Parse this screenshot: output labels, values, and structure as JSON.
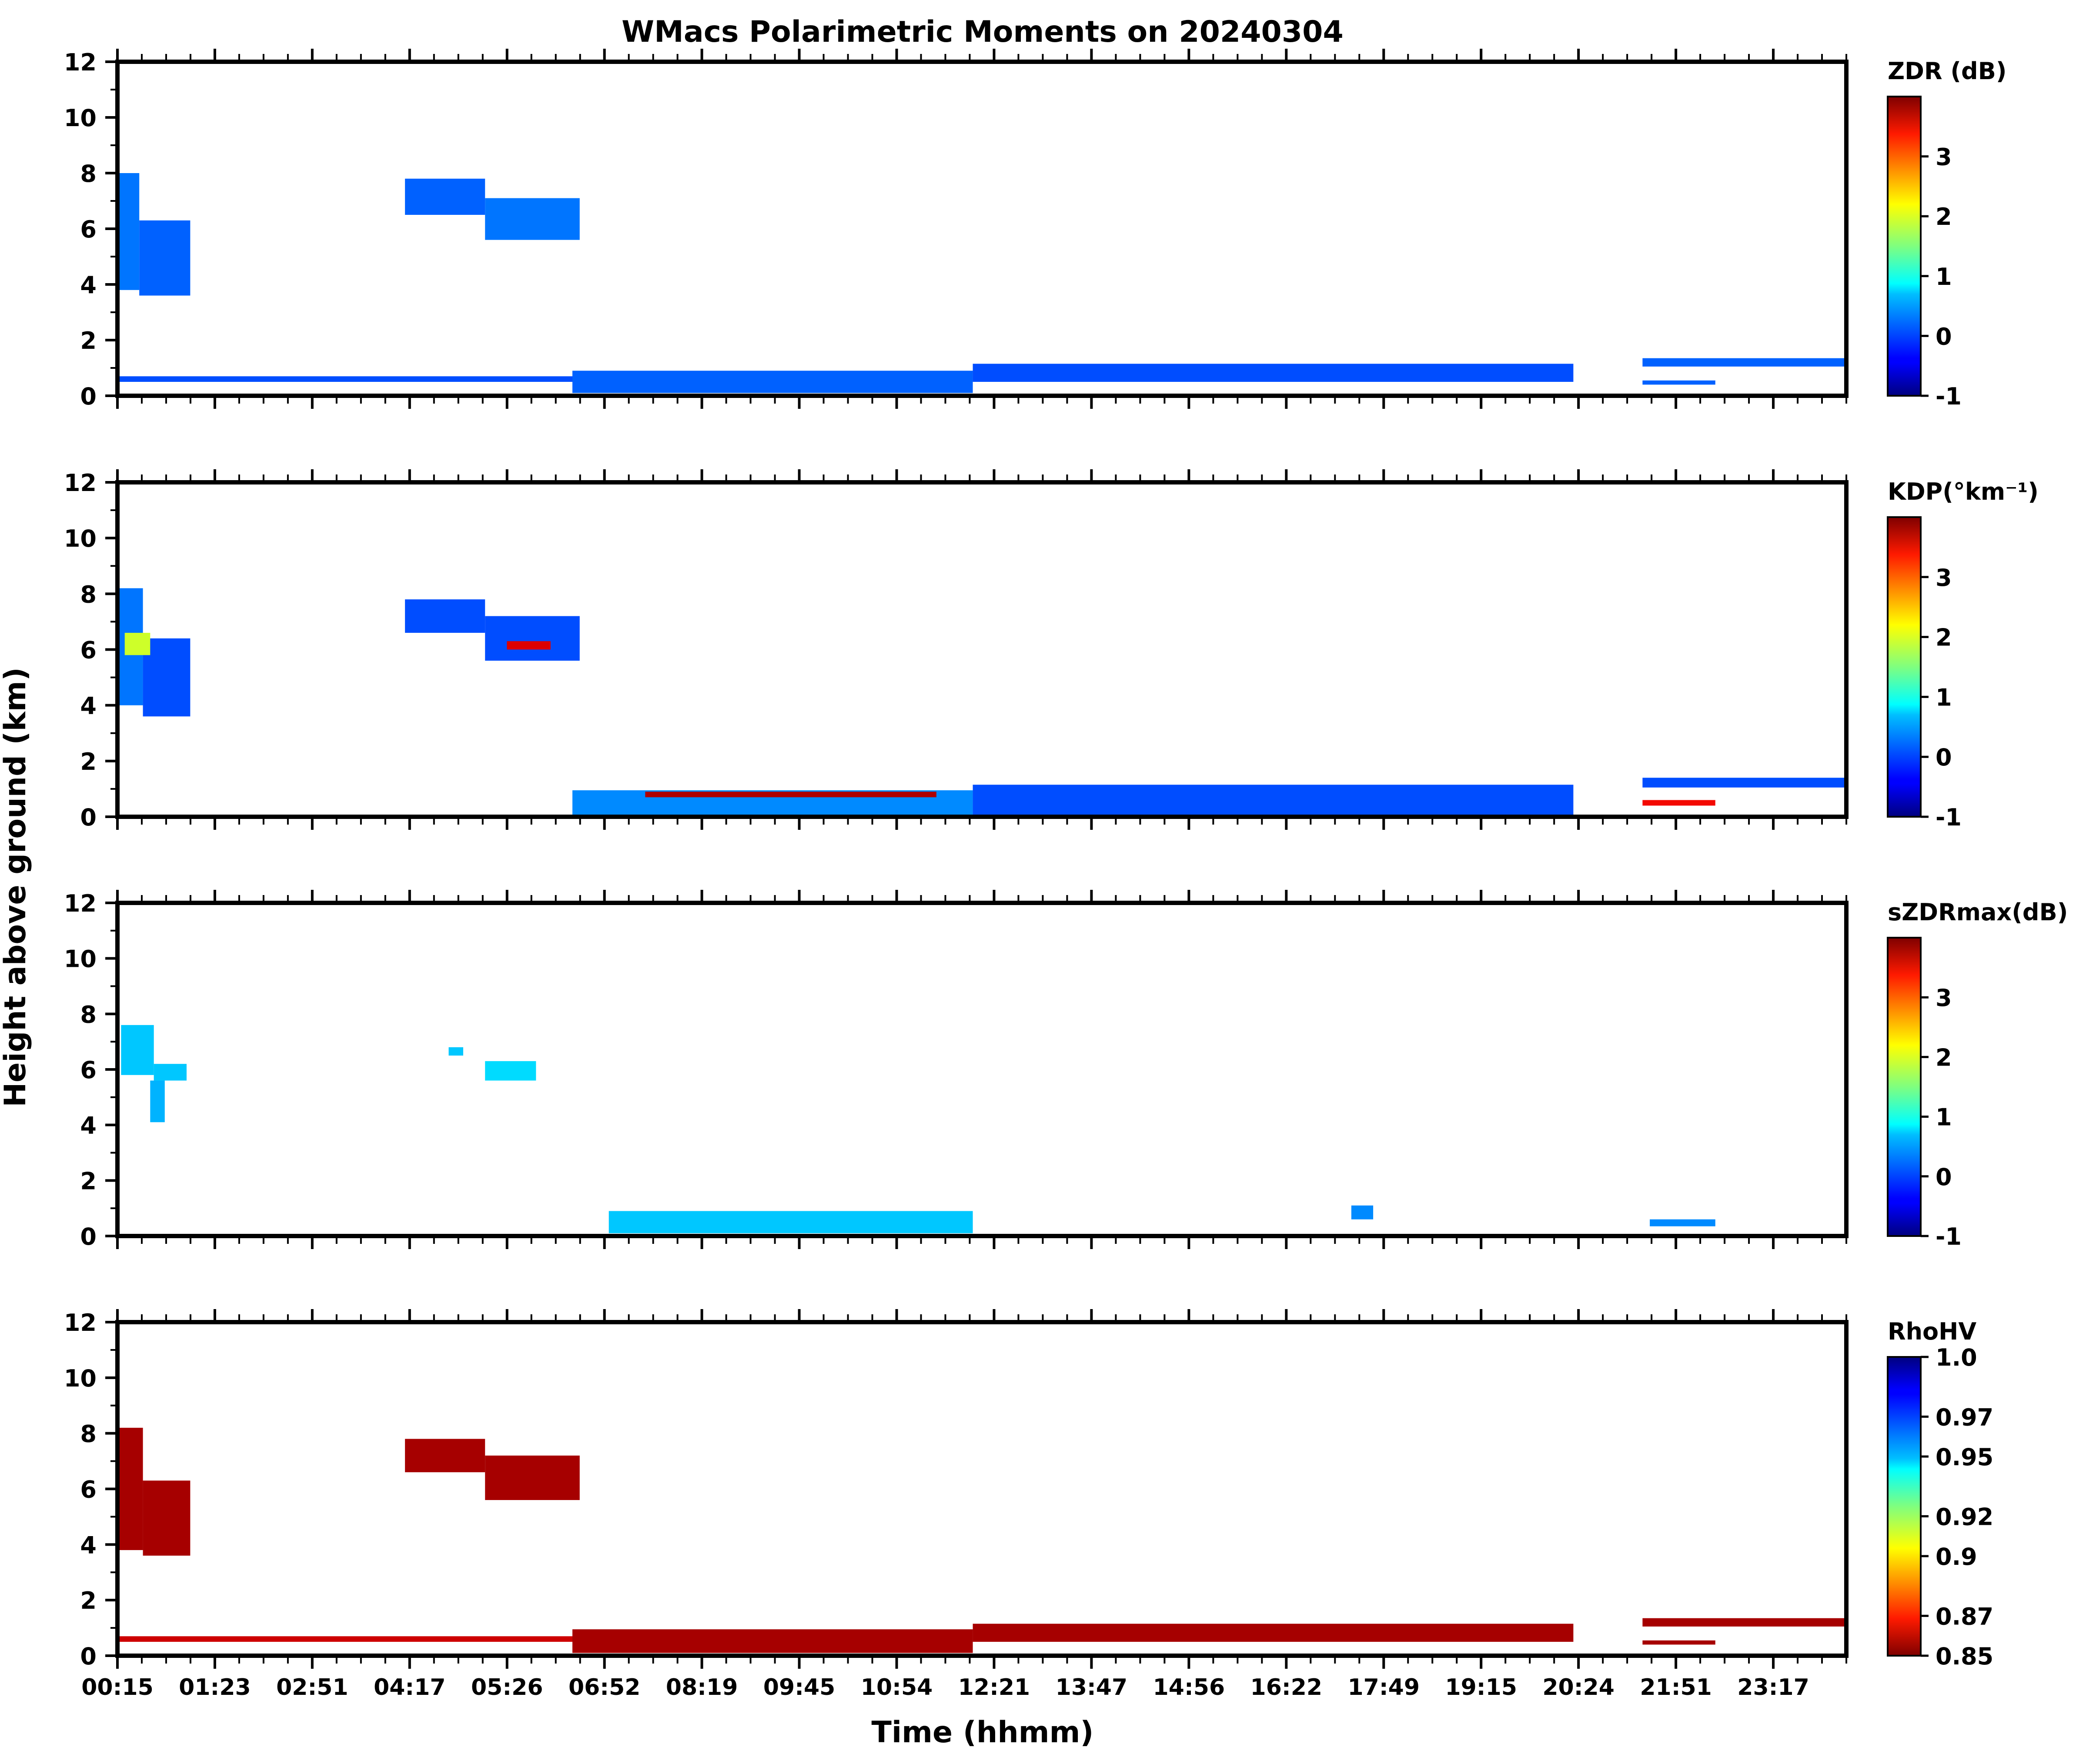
{
  "title": "WMacs Polarimetric Moments on 20240304",
  "colors": {
    "axes": "#000000",
    "background": "#ffffff"
  },
  "chart_data": {
    "type": "heatmap",
    "title": "WMacs Polarimetric Moments on 20240304",
    "xlabel": "Time (hhmm)",
    "ylabel": "Height above ground (km)",
    "x_tick_labels": [
      "00:15",
      "01:23",
      "02:51",
      "04:17",
      "05:26",
      "06:52",
      "08:19",
      "09:45",
      "10:54",
      "12:21",
      "13:47",
      "14:56",
      "16:22",
      "17:49",
      "19:15",
      "20:24",
      "21:51",
      "23:17"
    ],
    "y_ticks": [
      0,
      2,
      4,
      6,
      8,
      10,
      12
    ],
    "ylim": [
      0,
      12
    ],
    "xlim_hours": [
      0.25,
      24.0
    ],
    "panels": [
      {
        "name": "zdr",
        "colorbar_label": "ZDR (dB)",
        "colormap": "jet",
        "vmin": -1,
        "vmax": 4,
        "colorbar_ticks": [
          -1,
          0,
          1,
          2,
          3
        ],
        "colorbar_tick_labels": [
          "-1",
          "0",
          "1",
          "2",
          "3"
        ],
        "echoes": [
          {
            "t": [
              0.25,
              0.55
            ],
            "h": [
              3.8,
              8.0
            ],
            "value": 0.2
          },
          {
            "t": [
              0.55,
              1.25
            ],
            "h": [
              3.6,
              6.3
            ],
            "value": 0.1
          },
          {
            "t": [
              4.2,
              5.3
            ],
            "h": [
              6.5,
              7.8
            ],
            "value": 0.1
          },
          {
            "t": [
              5.3,
              6.6
            ],
            "h": [
              5.6,
              7.1
            ],
            "value": 0.2
          },
          {
            "t": [
              0.25,
              7.5
            ],
            "h": [
              0.5,
              0.7
            ],
            "value": 0.0
          },
          {
            "t": [
              6.5,
              12.0
            ],
            "h": [
              0.1,
              0.9
            ],
            "value": 0.1
          },
          {
            "t": [
              12.0,
              20.25
            ],
            "h": [
              0.5,
              1.15
            ],
            "value": 0.0
          },
          {
            "t": [
              21.2,
              24.0
            ],
            "h": [
              1.05,
              1.35
            ],
            "value": 0.1
          },
          {
            "t": [
              21.2,
              22.2
            ],
            "h": [
              0.4,
              0.55
            ],
            "value": 0.1
          }
        ]
      },
      {
        "name": "kdp",
        "colorbar_label": "KDP(°km⁻¹)",
        "colormap": "jet",
        "vmin": -1,
        "vmax": 4,
        "colorbar_ticks": [
          -1,
          0,
          1,
          2,
          3
        ],
        "colorbar_tick_labels": [
          "-1",
          "0",
          "1",
          "2",
          "3"
        ],
        "echoes": [
          {
            "t": [
              0.25,
              0.6
            ],
            "h": [
              4.0,
              8.2
            ],
            "value": 0.2
          },
          {
            "t": [
              0.6,
              1.25
            ],
            "h": [
              3.6,
              6.4
            ],
            "value": 0.0
          },
          {
            "t": [
              0.35,
              0.7
            ],
            "h": [
              5.8,
              6.6
            ],
            "value": 2.0
          },
          {
            "t": [
              4.2,
              5.3
            ],
            "h": [
              6.6,
              7.8
            ],
            "value": 0.0
          },
          {
            "t": [
              5.3,
              6.6
            ],
            "h": [
              5.6,
              7.2
            ],
            "value": 0.0
          },
          {
            "t": [
              5.6,
              6.2
            ],
            "h": [
              6.0,
              6.3
            ],
            "value": 3.6
          },
          {
            "t": [
              6.5,
              12.0
            ],
            "h": [
              0.05,
              0.95
            ],
            "value": 0.3
          },
          {
            "t": [
              7.5,
              11.5
            ],
            "h": [
              0.7,
              0.9
            ],
            "value": 3.8
          },
          {
            "t": [
              12.0,
              20.25
            ],
            "h": [
              0.0,
              1.15
            ],
            "value": 0.0
          },
          {
            "t": [
              21.2,
              24.0
            ],
            "h": [
              1.05,
              1.4
            ],
            "value": 0.0
          },
          {
            "t": [
              21.2,
              22.2
            ],
            "h": [
              0.4,
              0.6
            ],
            "value": 3.5
          }
        ]
      },
      {
        "name": "szdrmax",
        "colorbar_label": "sZDRmax(dB)",
        "colormap": "jet",
        "vmin": -1,
        "vmax": 4,
        "colorbar_ticks": [
          -1,
          0,
          1,
          2,
          3
        ],
        "colorbar_tick_labels": [
          "-1",
          "0",
          "1",
          "2",
          "3"
        ],
        "echoes": [
          {
            "t": [
              0.3,
              0.75
            ],
            "h": [
              5.8,
              7.6
            ],
            "value": 0.6
          },
          {
            "t": [
              0.75,
              1.2
            ],
            "h": [
              5.6,
              6.2
            ],
            "value": 0.6
          },
          {
            "t": [
              0.7,
              0.9
            ],
            "h": [
              4.1,
              5.6
            ],
            "value": 0.5
          },
          {
            "t": [
              4.8,
              5.0
            ],
            "h": [
              6.5,
              6.8
            ],
            "value": 0.6
          },
          {
            "t": [
              5.3,
              6.0
            ],
            "h": [
              5.6,
              6.3
            ],
            "value": 0.7
          },
          {
            "t": [
              7.0,
              12.0
            ],
            "h": [
              0.1,
              0.9
            ],
            "value": 0.6
          },
          {
            "t": [
              17.2,
              17.5
            ],
            "h": [
              0.6,
              1.1
            ],
            "value": 0.3
          },
          {
            "t": [
              21.3,
              22.2
            ],
            "h": [
              0.35,
              0.6
            ],
            "value": 0.3
          }
        ]
      },
      {
        "name": "rhohv",
        "colorbar_label": "RhoHV",
        "colormap": "jet_r",
        "vmin": 0.85,
        "vmax": 1.0,
        "colorbar_ticks": [
          0.85,
          0.87,
          0.9,
          0.92,
          0.95,
          0.97,
          1.0
        ],
        "colorbar_tick_labels": [
          "0.85",
          "0.87",
          "0.9",
          "0.92",
          "0.95",
          "0.97",
          "1.0"
        ],
        "echoes": [
          {
            "t": [
              0.25,
              0.6
            ],
            "h": [
              3.8,
              8.2
            ],
            "value": 0.855
          },
          {
            "t": [
              0.6,
              1.25
            ],
            "h": [
              3.6,
              6.3
            ],
            "value": 0.855
          },
          {
            "t": [
              4.2,
              5.3
            ],
            "h": [
              6.6,
              7.8
            ],
            "value": 0.855
          },
          {
            "t": [
              5.3,
              6.6
            ],
            "h": [
              5.6,
              7.2
            ],
            "value": 0.855
          },
          {
            "t": [
              0.25,
              7.5
            ],
            "h": [
              0.5,
              0.7
            ],
            "value": 0.86
          },
          {
            "t": [
              6.5,
              12.0
            ],
            "h": [
              0.1,
              0.95
            ],
            "value": 0.855
          },
          {
            "t": [
              12.0,
              20.25
            ],
            "h": [
              0.5,
              1.15
            ],
            "value": 0.855
          },
          {
            "t": [
              21.2,
              24.0
            ],
            "h": [
              1.05,
              1.35
            ],
            "value": 0.855
          },
          {
            "t": [
              21.2,
              22.2
            ],
            "h": [
              0.4,
              0.55
            ],
            "value": 0.855
          }
        ]
      }
    ]
  }
}
